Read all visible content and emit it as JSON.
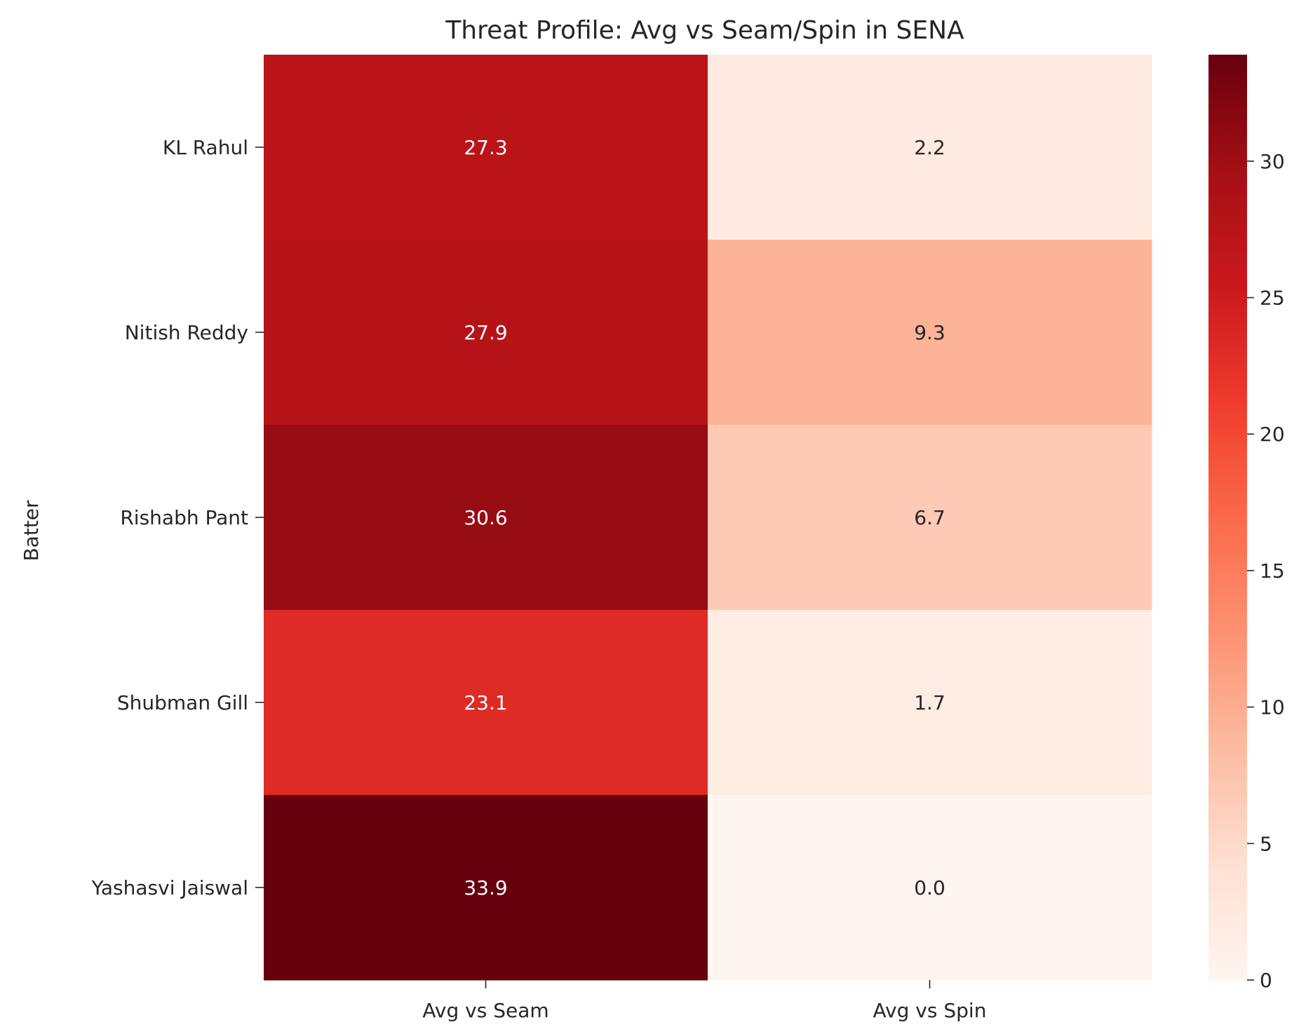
{
  "chart_data": {
    "type": "heatmap",
    "title": "Threat Profile: Avg vs Seam/Spin in SENA",
    "xlabel": "",
    "ylabel": "Batter",
    "columns": [
      "Avg vs Seam",
      "Avg vs Spin"
    ],
    "rows": [
      "KL Rahul",
      "Nitish Reddy",
      "Rishabh Pant",
      "Shubman Gill",
      "Yashasvi Jaiswal"
    ],
    "values": [
      [
        27.3,
        2.2
      ],
      [
        27.9,
        9.3
      ],
      [
        30.6,
        6.7
      ],
      [
        23.1,
        1.7
      ],
      [
        33.9,
        0.0
      ]
    ],
    "value_labels": [
      [
        "27.3",
        "2.2"
      ],
      [
        "27.9",
        "9.3"
      ],
      [
        "30.6",
        "6.7"
      ],
      [
        "23.1",
        "1.7"
      ],
      [
        "33.9",
        "0.0"
      ]
    ],
    "colormap": "Reds",
    "color_range": [
      0,
      33.9
    ],
    "colorbar_ticks": [
      "0",
      "5",
      "10",
      "15",
      "20",
      "25",
      "30"
    ],
    "colorbar_tick_values": [
      0,
      5,
      10,
      15,
      20,
      25,
      30
    ],
    "colors": {
      "reds_stops": [
        "#fff5f0",
        "#fee0d2",
        "#fcbba1",
        "#fc9272",
        "#fb6a4a",
        "#ef3b2c",
        "#cb181d",
        "#a50f15",
        "#67000d"
      ],
      "text_dark": "#262626",
      "text_light": "#ffffff"
    }
  }
}
